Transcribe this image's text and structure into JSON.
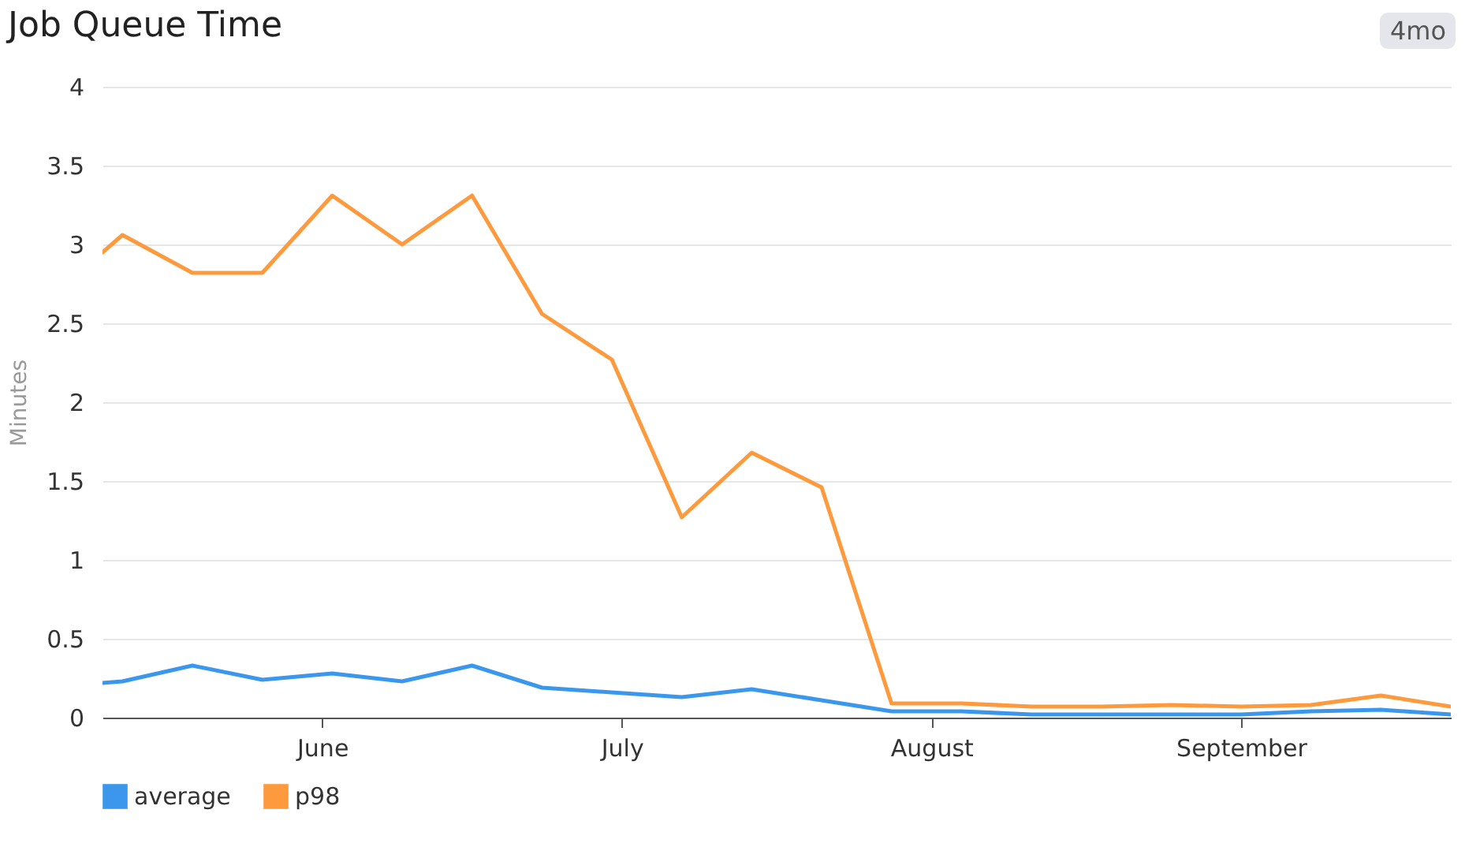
{
  "chart_data": {
    "type": "line",
    "title": "Job Queue Time",
    "ylabel": "Minutes",
    "annotations": [
      "4mo"
    ],
    "x": [
      "--05-10",
      "--05-12",
      "--05-19",
      "--05-26",
      "--06-02",
      "--06-09",
      "--06-16",
      "--06-23",
      "--06-30",
      "--07-07",
      "--07-14",
      "--07-21",
      "--07-28",
      "--08-04",
      "--08-11",
      "--08-18",
      "--08-25",
      "--09-01",
      "--09-08",
      "--09-15",
      "--09-22"
    ],
    "series": [
      {
        "name": "average",
        "color": "#3b97ec",
        "values": [
          0.22,
          0.23,
          0.33,
          0.24,
          0.28,
          0.23,
          0.33,
          0.19,
          0.16,
          0.13,
          0.18,
          0.11,
          0.04,
          0.04,
          0.02,
          0.02,
          0.02,
          0.02,
          0.04,
          0.05,
          0.02
        ]
      },
      {
        "name": "p98",
        "color": "#fd9a3d",
        "values": [
          2.95,
          3.06,
          2.82,
          2.82,
          3.31,
          3.0,
          3.31,
          2.56,
          2.27,
          1.27,
          1.68,
          1.46,
          0.09,
          0.09,
          0.07,
          0.07,
          0.08,
          0.07,
          0.08,
          0.14,
          0.07
        ]
      }
    ],
    "xlim": [
      "--05-10",
      "--09-22"
    ],
    "xticks": [
      {
        "value": "--06-01",
        "label": "June"
      },
      {
        "value": "--07-01",
        "label": "July"
      },
      {
        "value": "--08-01",
        "label": "August"
      },
      {
        "value": "--09-01",
        "label": "September"
      }
    ],
    "ylim": [
      0,
      4
    ],
    "yticks": [
      0,
      0.5,
      1,
      1.5,
      2,
      2.5,
      3,
      3.5,
      4
    ],
    "grid": "y",
    "legend": "bottom left",
    "marker": "none",
    "line_style": "solid"
  }
}
